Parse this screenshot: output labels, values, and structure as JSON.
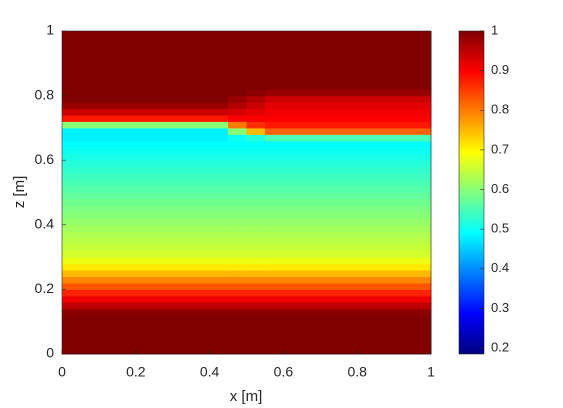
{
  "chart_data": {
    "type": "heatmap",
    "colormap": "jet",
    "x_label": "x [m]",
    "y_label": "z [m]",
    "xbins": [
      0,
      0.45,
      0.5,
      0.55,
      1
    ],
    "y": [
      0.01,
      0.03,
      0.05,
      0.07,
      0.09,
      0.11,
      0.13,
      0.15,
      0.17,
      0.19,
      0.21,
      0.23,
      0.25,
      0.27,
      0.29,
      0.31,
      0.33,
      0.35,
      0.37,
      0.39,
      0.41,
      0.43,
      0.45,
      0.47,
      0.49,
      0.51,
      0.53,
      0.55,
      0.57,
      0.59,
      0.61,
      0.63,
      0.65,
      0.67,
      0.69,
      0.71,
      0.73,
      0.75,
      0.77,
      0.79,
      0.81,
      0.83,
      0.85,
      0.87,
      0.89,
      0.91,
      0.93,
      0.95,
      0.97,
      0.99
    ],
    "y_cell": 0.02,
    "values": [
      [
        1,
        1,
        1,
        1
      ],
      [
        1,
        1,
        1,
        1
      ],
      [
        1,
        1,
        1,
        1
      ],
      [
        1,
        1,
        1,
        1
      ],
      [
        1,
        1,
        1,
        1
      ],
      [
        1,
        1,
        1,
        1
      ],
      [
        0.99,
        0.99,
        0.99,
        0.99
      ],
      [
        0.95,
        0.95,
        0.95,
        0.95
      ],
      [
        0.91,
        0.91,
        0.91,
        0.91
      ],
      [
        0.87,
        0.87,
        0.87,
        0.87
      ],
      [
        0.83,
        0.83,
        0.83,
        0.83
      ],
      [
        0.79,
        0.79,
        0.79,
        0.79
      ],
      [
        0.75,
        0.75,
        0.75,
        0.75
      ],
      [
        0.71,
        0.71,
        0.71,
        0.71
      ],
      [
        0.68,
        0.68,
        0.68,
        0.68
      ],
      [
        0.66,
        0.66,
        0.66,
        0.66
      ],
      [
        0.65,
        0.65,
        0.65,
        0.65
      ],
      [
        0.64,
        0.64,
        0.64,
        0.64
      ],
      [
        0.63,
        0.63,
        0.63,
        0.63
      ],
      [
        0.62,
        0.62,
        0.62,
        0.62
      ],
      [
        0.61,
        0.61,
        0.61,
        0.61
      ],
      [
        0.6,
        0.6,
        0.6,
        0.6
      ],
      [
        0.59,
        0.59,
        0.59,
        0.59
      ],
      [
        0.58,
        0.58,
        0.58,
        0.58
      ],
      [
        0.57,
        0.57,
        0.57,
        0.57
      ],
      [
        0.56,
        0.56,
        0.56,
        0.56
      ],
      [
        0.55,
        0.55,
        0.55,
        0.55
      ],
      [
        0.54,
        0.54,
        0.54,
        0.54
      ],
      [
        0.53,
        0.53,
        0.53,
        0.53
      ],
      [
        0.52,
        0.52,
        0.52,
        0.52
      ],
      [
        0.51,
        0.51,
        0.51,
        0.51
      ],
      [
        0.5,
        0.5,
        0.5,
        0.5
      ],
      [
        0.49,
        0.49,
        0.49,
        0.49
      ],
      [
        0.48,
        0.5,
        0.52,
        0.55
      ],
      [
        0.48,
        0.6,
        0.75,
        0.82
      ],
      [
        0.6,
        0.8,
        0.86,
        0.88
      ],
      [
        0.88,
        0.9,
        0.9,
        0.9
      ],
      [
        0.94,
        0.93,
        0.92,
        0.91
      ],
      [
        0.98,
        0.96,
        0.94,
        0.92
      ],
      [
        1,
        0.98,
        0.96,
        0.94
      ],
      [
        1,
        1,
        0.99,
        0.98
      ],
      [
        1,
        1,
        1,
        1
      ],
      [
        1,
        1,
        1,
        1
      ],
      [
        1,
        1,
        1,
        1
      ],
      [
        1,
        1,
        1,
        1
      ],
      [
        1,
        1,
        1,
        1
      ],
      [
        1,
        1,
        1,
        1
      ],
      [
        1,
        1,
        1,
        1
      ],
      [
        1,
        1,
        1,
        1
      ],
      [
        1,
        1,
        1,
        1
      ]
    ],
    "xlim": [
      0,
      1
    ],
    "xticks": [
      0,
      0.2,
      0.4,
      0.6,
      0.8,
      1
    ],
    "ylim": [
      0,
      1
    ],
    "yticks": [
      0,
      0.2,
      0.4,
      0.6,
      0.8,
      1
    ],
    "clim": [
      0.185,
      1
    ],
    "cticks": [
      0.2,
      0.3,
      0.4,
      0.5,
      0.6,
      0.7,
      0.8,
      0.9,
      1
    ]
  }
}
